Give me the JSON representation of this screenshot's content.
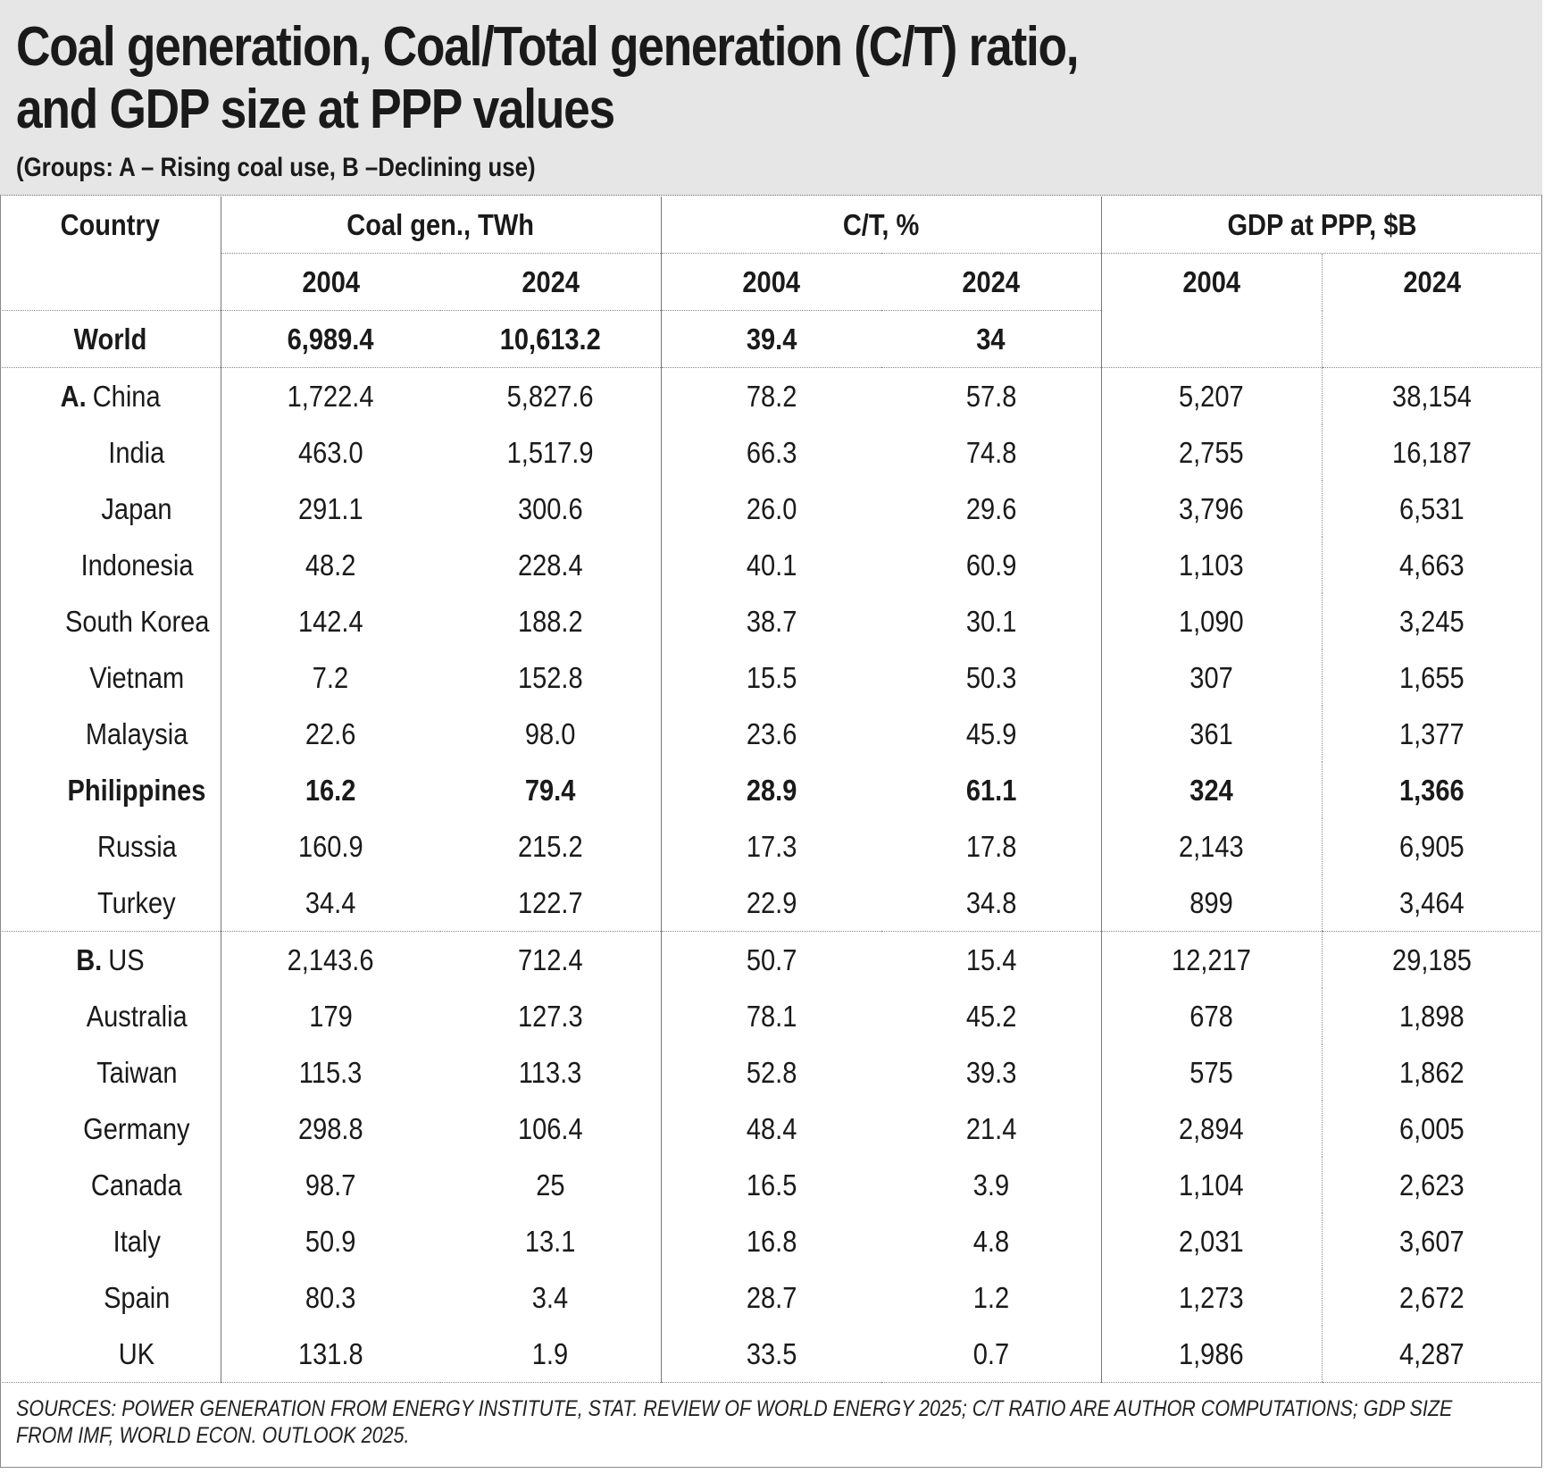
{
  "chart_data": {
    "type": "table",
    "title_line1": "Coal generation, Coal/Total generation (C/T) ratio,",
    "title_line2": "and GDP size at PPP values",
    "subtitle": "(Groups: A – Rising coal use, B –Declining use)",
    "headers": {
      "country": "Country",
      "coal_gen": "Coal gen., TWh",
      "ct": "C/T, %",
      "gdp": "GDP at PPP, $B",
      "years": [
        "2004",
        "2024",
        "2004",
        "2024",
        "2004",
        "2024"
      ]
    },
    "world": {
      "label": "World",
      "values": [
        "6,989.4",
        "10,613.2",
        "39.4",
        "34"
      ]
    },
    "groups": [
      {
        "marker": "A.",
        "rows": [
          {
            "country": "China",
            "values": [
              "1,722.4",
              "5,827.6",
              "78.2",
              "57.8",
              "5,207",
              "38,154"
            ],
            "bold": false
          },
          {
            "country": "India",
            "values": [
              "463.0",
              "1,517.9",
              "66.3",
              "74.8",
              "2,755",
              "16,187"
            ],
            "bold": false
          },
          {
            "country": "Japan",
            "values": [
              "291.1",
              "300.6",
              "26.0",
              "29.6",
              "3,796",
              "6,531"
            ],
            "bold": false
          },
          {
            "country": "Indonesia",
            "values": [
              "48.2",
              "228.4",
              "40.1",
              "60.9",
              "1,103",
              "4,663"
            ],
            "bold": false
          },
          {
            "country": "South Korea",
            "values": [
              "142.4",
              "188.2",
              "38.7",
              "30.1",
              "1,090",
              "3,245"
            ],
            "bold": false
          },
          {
            "country": "Vietnam",
            "values": [
              "7.2",
              "152.8",
              "15.5",
              "50.3",
              "307",
              "1,655"
            ],
            "bold": false
          },
          {
            "country": "Malaysia",
            "values": [
              "22.6",
              "98.0",
              "23.6",
              "45.9",
              "361",
              "1,377"
            ],
            "bold": false
          },
          {
            "country": "Philippines",
            "values": [
              "16.2",
              "79.4",
              "28.9",
              "61.1",
              "324",
              "1,366"
            ],
            "bold": true
          },
          {
            "country": "Russia",
            "values": [
              "160.9",
              "215.2",
              "17.3",
              "17.8",
              "2,143",
              "6,905"
            ],
            "bold": false
          },
          {
            "country": "Turkey",
            "values": [
              "34.4",
              "122.7",
              "22.9",
              "34.8",
              "899",
              "3,464"
            ],
            "bold": false
          }
        ]
      },
      {
        "marker": "B.",
        "rows": [
          {
            "country": "US",
            "values": [
              "2,143.6",
              "712.4",
              "50.7",
              "15.4",
              "12,217",
              "29,185"
            ],
            "bold": false
          },
          {
            "country": "Australia",
            "values": [
              "179",
              "127.3",
              "78.1",
              "45.2",
              "678",
              "1,898"
            ],
            "bold": false
          },
          {
            "country": "Taiwan",
            "values": [
              "115.3",
              "113.3",
              "52.8",
              "39.3",
              "575",
              "1,862"
            ],
            "bold": false
          },
          {
            "country": "Germany",
            "values": [
              "298.8",
              "106.4",
              "48.4",
              "21.4",
              "2,894",
              "6,005"
            ],
            "bold": false
          },
          {
            "country": "Canada",
            "values": [
              "98.7",
              "25",
              "16.5",
              "3.9",
              "1,104",
              "2,623"
            ],
            "bold": false
          },
          {
            "country": "Italy",
            "values": [
              "50.9",
              "13.1",
              "16.8",
              "4.8",
              "2,031",
              "3,607"
            ],
            "bold": false
          },
          {
            "country": "Spain",
            "values": [
              "80.3",
              "3.4",
              "28.7",
              "1.2",
              "1,273",
              "2,672"
            ],
            "bold": false
          },
          {
            "country": "UK",
            "values": [
              "131.8",
              "1.9",
              "33.5",
              "0.7",
              "1,986",
              "4,287"
            ],
            "bold": false
          }
        ]
      }
    ],
    "sources": "SOURCES: POWER GENERATION FROM ENERGY INSTITUTE, STAT. REVIEW OF WORLD ENERGY 2025; C/T RATIO ARE AUTHOR COMPUTATIONS; GDP SIZE FROM IMF, WORLD ECON. OUTLOOK 2025."
  }
}
